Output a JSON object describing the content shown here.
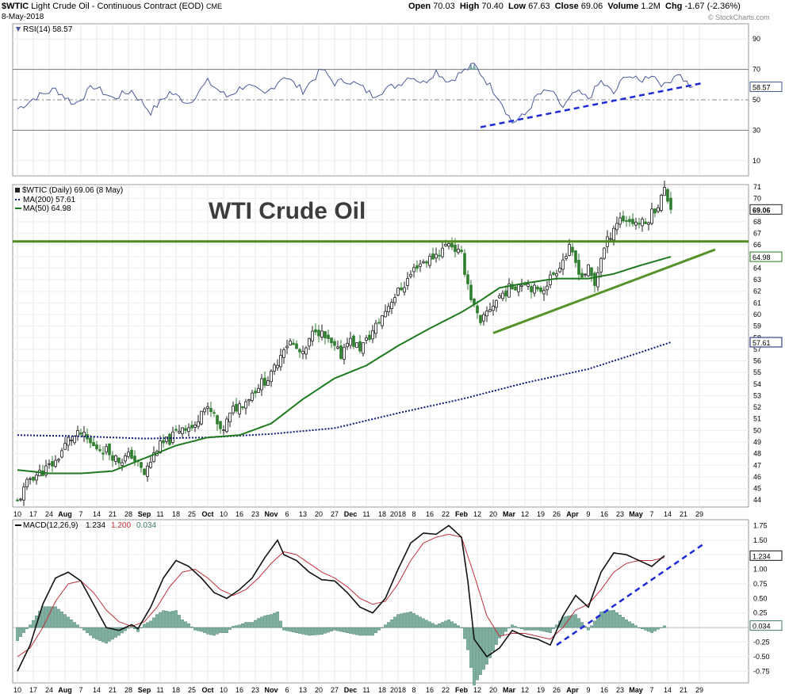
{
  "header": {
    "symbol": "$WTIC",
    "name": "Light Crude Oil - Continuous Contract (EOD)",
    "exchange": "CME",
    "date": "8-May-2018",
    "open_label": "Open",
    "open": "70.03",
    "high_label": "High",
    "high": "70.40",
    "low_label": "Low",
    "low": "67.63",
    "close_label": "Close",
    "close": "69.06",
    "volume_label": "Volume",
    "volume": "1.2M",
    "chg_label": "Chg",
    "chg": "-1.67 (-2.36%)",
    "watermark": "© StockCharts.com"
  },
  "annotation": "WTI Crude Oil",
  "chart_data": [
    {
      "type": "line",
      "panel": "rsi",
      "legend": "RSI(14) 58.57",
      "ylim": [
        0,
        100
      ],
      "y_ticks": [
        10,
        30,
        50,
        70,
        90
      ],
      "reference_lines": [
        30,
        50,
        70
      ],
      "last_value_label": "58.57",
      "x_index_range": [
        0,
        213
      ],
      "knots": [
        [
          0,
          44
        ],
        [
          6,
          52
        ],
        [
          12,
          57
        ],
        [
          18,
          47
        ],
        [
          24,
          59
        ],
        [
          30,
          51
        ],
        [
          36,
          56
        ],
        [
          42,
          42
        ],
        [
          48,
          55
        ],
        [
          54,
          48
        ],
        [
          60,
          62
        ],
        [
          66,
          52
        ],
        [
          72,
          60
        ],
        [
          78,
          53
        ],
        [
          84,
          66
        ],
        [
          90,
          56
        ],
        [
          96,
          70
        ],
        [
          100,
          61
        ],
        [
          104,
          63
        ],
        [
          108,
          59
        ],
        [
          112,
          53
        ],
        [
          116,
          57
        ],
        [
          120,
          60
        ],
        [
          124,
          66
        ],
        [
          128,
          61
        ],
        [
          132,
          69
        ],
        [
          136,
          62
        ],
        [
          140,
          68
        ],
        [
          144,
          73
        ],
        [
          148,
          62
        ],
        [
          152,
          51
        ],
        [
          156,
          35
        ],
        [
          160,
          40
        ],
        [
          164,
          53
        ],
        [
          168,
          56
        ],
        [
          172,
          45
        ],
        [
          176,
          55
        ],
        [
          180,
          51
        ],
        [
          184,
          62
        ],
        [
          188,
          54
        ],
        [
          192,
          67
        ],
        [
          196,
          62
        ],
        [
          200,
          67
        ],
        [
          204,
          59
        ],
        [
          208,
          68
        ],
        [
          212,
          59
        ],
        [
          213,
          58.57
        ]
      ],
      "trendline": {
        "from": [
          146,
          32
        ],
        "to": [
          216,
          61
        ],
        "style": "dashed",
        "color": "#1d2bd6"
      }
    },
    {
      "type": "candlestick",
      "panel": "price",
      "legend": [
        "$WTIC (Daily) 69.06 (8 May)",
        "MA(200) 57.61",
        "MA(50) 64.98"
      ],
      "ylim": [
        43.4,
        71.2
      ],
      "y_ticks": [
        44,
        45,
        46,
        47,
        48,
        49,
        50,
        51,
        52,
        53,
        54,
        55,
        56,
        57,
        58,
        59,
        60,
        61,
        62,
        63,
        64,
        65,
        66,
        67,
        68,
        69,
        70,
        71
      ],
      "x_tick_labels": [
        "10",
        "17",
        "24",
        "Aug",
        "7",
        "14",
        "21",
        "28",
        "Sep",
        "11",
        "18",
        "25",
        "Oct",
        "10",
        "16",
        "23",
        "Nov",
        "6",
        "13",
        "20",
        "27",
        "Dec",
        "11",
        "18",
        "2018",
        "8",
        "16",
        "22",
        "Feb",
        "12",
        "20",
        "Mar",
        "12",
        "19",
        "26",
        "Apr",
        "9",
        "16",
        "23",
        "May",
        "7",
        "14",
        "21",
        "29"
      ],
      "x_tick_index": [
        0,
        5,
        10,
        15,
        20,
        25,
        30,
        35,
        40,
        45,
        50,
        55,
        60,
        65,
        70,
        75,
        80,
        85,
        90,
        95,
        100,
        105,
        110,
        115,
        120,
        125,
        130,
        135,
        140,
        145,
        150,
        155,
        160,
        165,
        170,
        175,
        180,
        185,
        190,
        195,
        200,
        205,
        210,
        215
      ],
      "close_knots": [
        [
          0,
          43.8
        ],
        [
          4,
          45.9
        ],
        [
          8,
          46.5
        ],
        [
          12,
          47.3
        ],
        [
          16,
          49.2
        ],
        [
          20,
          49.7
        ],
        [
          24,
          48.6
        ],
        [
          28,
          48.3
        ],
        [
          32,
          47.4
        ],
        [
          36,
          47.9
        ],
        [
          40,
          46.2
        ],
        [
          44,
          48.5
        ],
        [
          48,
          49.2
        ],
        [
          52,
          50.4
        ],
        [
          56,
          50.2
        ],
        [
          58,
          52.1
        ],
        [
          62,
          51.3
        ],
        [
          64,
          49.7
        ],
        [
          68,
          51.8
        ],
        [
          72,
          52.6
        ],
        [
          76,
          53.9
        ],
        [
          80,
          54.7
        ],
        [
          84,
          57.3
        ],
        [
          86,
          57.6
        ],
        [
          90,
          56.4
        ],
        [
          94,
          58.9
        ],
        [
          98,
          57.6
        ],
        [
          102,
          56.5
        ],
        [
          104,
          57.9
        ],
        [
          108,
          57.1
        ],
        [
          110,
          57.7
        ],
        [
          114,
          59.4
        ],
        [
          118,
          61.3
        ],
        [
          122,
          62.6
        ],
        [
          126,
          64.3
        ],
        [
          130,
          64.8
        ],
        [
          134,
          65.6
        ],
        [
          136,
          66.3
        ],
        [
          140,
          65.0
        ],
        [
          143,
          61.5
        ],
        [
          146,
          59.0
        ],
        [
          148,
          60.2
        ],
        [
          152,
          61.6
        ],
        [
          156,
          62.4
        ],
        [
          160,
          62.9
        ],
        [
          164,
          61.9
        ],
        [
          166,
          62.4
        ],
        [
          170,
          63.9
        ],
        [
          174,
          65.6
        ],
        [
          178,
          63.3
        ],
        [
          180,
          63.9
        ],
        [
          182,
          62.5
        ],
        [
          184,
          65.0
        ],
        [
          188,
          67.6
        ],
        [
          190,
          68.3
        ],
        [
          194,
          68.0
        ],
        [
          198,
          67.8
        ],
        [
          200,
          68.8
        ],
        [
          202,
          69.5
        ],
        [
          204,
          70.73
        ],
        [
          206,
          69.06
        ]
      ],
      "ma200": {
        "name": "MA(200) 57.61",
        "last": 57.61,
        "style": "dotted",
        "color": "#101a7a",
        "knots": [
          [
            0,
            49.6
          ],
          [
            20,
            49.5
          ],
          [
            40,
            49.3
          ],
          [
            60,
            49.4
          ],
          [
            80,
            49.7
          ],
          [
            100,
            50.2
          ],
          [
            120,
            51.5
          ],
          [
            140,
            52.7
          ],
          [
            160,
            54.1
          ],
          [
            180,
            55.3
          ],
          [
            196,
            56.7
          ],
          [
            206,
            57.61
          ]
        ]
      },
      "ma50": {
        "name": "MA(50) 64.98",
        "last": 64.98,
        "style": "solid",
        "color": "#1f7a1f",
        "knots": [
          [
            0,
            46.6
          ],
          [
            10,
            46.3
          ],
          [
            20,
            46.3
          ],
          [
            30,
            46.5
          ],
          [
            40,
            47.6
          ],
          [
            50,
            48.7
          ],
          [
            60,
            49.4
          ],
          [
            70,
            49.6
          ],
          [
            80,
            50.6
          ],
          [
            90,
            52.7
          ],
          [
            100,
            54.5
          ],
          [
            110,
            55.6
          ],
          [
            120,
            57.3
          ],
          [
            130,
            58.8
          ],
          [
            140,
            60.2
          ],
          [
            146,
            61.2
          ],
          [
            152,
            62.3
          ],
          [
            160,
            62.7
          ],
          [
            170,
            63.1
          ],
          [
            180,
            63.1
          ],
          [
            188,
            63.5
          ],
          [
            196,
            64.2
          ],
          [
            206,
            64.98
          ]
        ]
      },
      "resistance_line": {
        "y": 66.3,
        "color": "#4f8a1e"
      },
      "support_trendline": {
        "from": [
          150,
          58.4
        ],
        "to": [
          220,
          65.6
        ],
        "color": "#56922a"
      },
      "price_label": "69.06",
      "ma50_label": "64.98",
      "ma200_label": "57.61"
    },
    {
      "type": "line",
      "panel": "macd",
      "legend": [
        "MACD(12,26,9)",
        "1.234",
        "1.200",
        "0.034"
      ],
      "ylim": [
        -0.95,
        1.85
      ],
      "y_ticks": [
        -0.75,
        -0.5,
        -0.25,
        0.25,
        0.5,
        0.75,
        1.0,
        1.25,
        1.5,
        1.75
      ],
      "y_tick_labels": [
        "-0.75",
        "-0.50",
        "-0.25",
        "0.25",
        "0.50",
        "0.75",
        "1.00",
        "1.25",
        "1.50",
        "1.75"
      ],
      "x_tick_labels": [
        "10",
        "17",
        "24",
        "Aug",
        "7",
        "14",
        "21",
        "28",
        "Sep",
        "11",
        "18",
        "25",
        "Oct",
        "10",
        "16",
        "23",
        "Nov",
        "6",
        "13",
        "20",
        "27",
        "Dec",
        "11",
        "18",
        "2018",
        "8",
        "16",
        "22",
        "Feb",
        "12",
        "20",
        "Mar",
        "12",
        "19",
        "26",
        "Apr",
        "9",
        "16",
        "23",
        "May",
        "7",
        "14",
        "21",
        "29"
      ],
      "macd_label": "1.234",
      "hist_label": "0.034",
      "macd_knots": [
        [
          0,
          -0.75
        ],
        [
          4,
          -0.3
        ],
        [
          8,
          0.4
        ],
        [
          12,
          0.85
        ],
        [
          16,
          0.95
        ],
        [
          20,
          0.8
        ],
        [
          24,
          0.4
        ],
        [
          28,
          0.0
        ],
        [
          32,
          -0.05
        ],
        [
          36,
          0.05
        ],
        [
          38,
          -0.02
        ],
        [
          42,
          0.35
        ],
        [
          46,
          0.85
        ],
        [
          50,
          1.15
        ],
        [
          54,
          1.05
        ],
        [
          58,
          0.85
        ],
        [
          62,
          0.6
        ],
        [
          66,
          0.5
        ],
        [
          70,
          0.65
        ],
        [
          74,
          0.85
        ],
        [
          78,
          1.2
        ],
        [
          82,
          1.5
        ],
        [
          84,
          1.25
        ],
        [
          88,
          1.15
        ],
        [
          92,
          0.95
        ],
        [
          96,
          0.82
        ],
        [
          100,
          0.8
        ],
        [
          104,
          0.6
        ],
        [
          108,
          0.35
        ],
        [
          112,
          0.25
        ],
        [
          116,
          0.5
        ],
        [
          120,
          1.0
        ],
        [
          124,
          1.45
        ],
        [
          128,
          1.62
        ],
        [
          132,
          1.6
        ],
        [
          136,
          1.75
        ],
        [
          140,
          1.55
        ],
        [
          142,
          0.8
        ],
        [
          144,
          -0.2
        ],
        [
          148,
          -0.5
        ],
        [
          152,
          -0.35
        ],
        [
          156,
          -0.05
        ],
        [
          160,
          -0.15
        ],
        [
          164,
          -0.2
        ],
        [
          168,
          -0.3
        ],
        [
          172,
          0.2
        ],
        [
          176,
          0.55
        ],
        [
          180,
          0.35
        ],
        [
          184,
          0.95
        ],
        [
          188,
          1.28
        ],
        [
          192,
          1.25
        ],
        [
          196,
          1.15
        ],
        [
          200,
          1.05
        ],
        [
          204,
          1.234
        ]
      ],
      "signal_knots": [
        [
          0,
          -0.5
        ],
        [
          4,
          -0.35
        ],
        [
          8,
          0.0
        ],
        [
          12,
          0.45
        ],
        [
          16,
          0.75
        ],
        [
          20,
          0.8
        ],
        [
          24,
          0.6
        ],
        [
          28,
          0.3
        ],
        [
          32,
          0.1
        ],
        [
          36,
          0.02
        ],
        [
          40,
          0.1
        ],
        [
          44,
          0.35
        ],
        [
          48,
          0.7
        ],
        [
          52,
          0.95
        ],
        [
          56,
          1.0
        ],
        [
          60,
          0.85
        ],
        [
          64,
          0.65
        ],
        [
          68,
          0.55
        ],
        [
          72,
          0.65
        ],
        [
          76,
          0.85
        ],
        [
          80,
          1.1
        ],
        [
          84,
          1.3
        ],
        [
          88,
          1.25
        ],
        [
          92,
          1.1
        ],
        [
          96,
          0.95
        ],
        [
          100,
          0.85
        ],
        [
          104,
          0.7
        ],
        [
          108,
          0.5
        ],
        [
          112,
          0.4
        ],
        [
          116,
          0.45
        ],
        [
          120,
          0.75
        ],
        [
          124,
          1.15
        ],
        [
          128,
          1.45
        ],
        [
          132,
          1.55
        ],
        [
          136,
          1.6
        ],
        [
          140,
          1.55
        ],
        [
          144,
          0.9
        ],
        [
          148,
          0.2
        ],
        [
          152,
          -0.15
        ],
        [
          156,
          -0.1
        ],
        [
          160,
          -0.1
        ],
        [
          164,
          -0.15
        ],
        [
          168,
          -0.2
        ],
        [
          172,
          0.0
        ],
        [
          176,
          0.3
        ],
        [
          180,
          0.4
        ],
        [
          184,
          0.65
        ],
        [
          188,
          0.95
        ],
        [
          192,
          1.1
        ],
        [
          196,
          1.15
        ],
        [
          200,
          1.15
        ],
        [
          204,
          1.2
        ]
      ],
      "trendline": {
        "from": [
          170,
          -0.3
        ],
        "to": [
          216,
          1.42
        ],
        "style": "dashed",
        "color": "#1d2bd6"
      }
    }
  ]
}
